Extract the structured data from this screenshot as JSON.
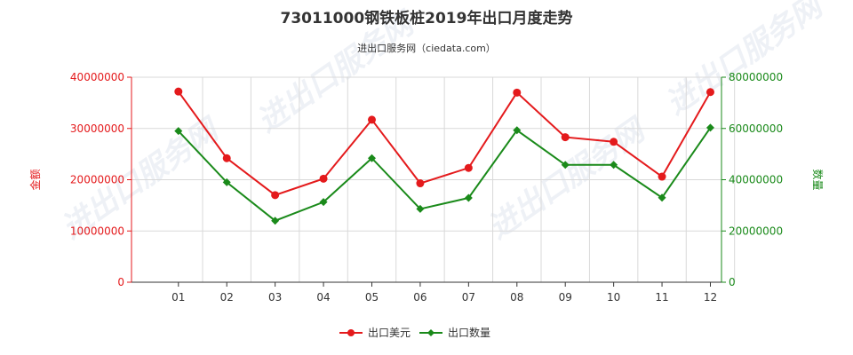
{
  "chart_data": {
    "type": "line",
    "title": "73011000钢铁板桩2019年出口月度走势",
    "subtitle": "进出口服务网（ciedata.com）",
    "categories": [
      "01",
      "02",
      "03",
      "04",
      "05",
      "06",
      "07",
      "08",
      "09",
      "10",
      "11",
      "12"
    ],
    "y_left": {
      "label": "金额",
      "ylim": [
        0,
        40000000
      ],
      "ticks": [
        "0",
        "10000000",
        "20000000",
        "30000000",
        "40000000"
      ]
    },
    "y_right": {
      "label": "数量",
      "ylim": [
        0,
        80000000
      ],
      "ticks": [
        "0",
        "20000000",
        "40000000",
        "60000000",
        "80000000"
      ]
    },
    "series": [
      {
        "name": "出口美元",
        "axis": "left",
        "color": "#e41a1c",
        "values": [
          37200000,
          24200000,
          17000000,
          20200000,
          31700000,
          19300000,
          22300000,
          37000000,
          28300000,
          27400000,
          20600000,
          37100000
        ]
      },
      {
        "name": "出口数量",
        "axis": "right",
        "color": "#1a8a1a",
        "values": [
          59000000,
          39000000,
          24000000,
          31300000,
          48400000,
          28600000,
          32900000,
          59300000,
          45800000,
          45800000,
          33000000,
          60300000
        ]
      }
    ],
    "grid": true,
    "legend_position": "bottom-center"
  },
  "watermark": "进出口服务网"
}
